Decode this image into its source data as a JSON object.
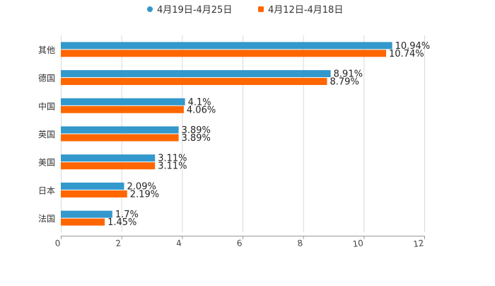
{
  "chart_data": {
    "type": "bar",
    "orientation": "horizontal",
    "title": "",
    "xlabel": "",
    "ylabel": "",
    "categories": [
      "其他",
      "德国",
      "中国",
      "英国",
      "美国",
      "日本",
      "法国"
    ],
    "series": [
      {
        "name": "4月19日-4月25日",
        "color": "#3398cc",
        "values": [
          10.94,
          8.91,
          4.1,
          3.89,
          3.11,
          2.09,
          1.7
        ],
        "labels": [
          "10.94%",
          "8.91%",
          "4.1%",
          "3.89%",
          "3.11%",
          "2.09%",
          "1.7%"
        ]
      },
      {
        "name": "4月12日-4月18日",
        "color": "#ff6600",
        "values": [
          10.74,
          8.79,
          4.06,
          3.89,
          3.11,
          2.19,
          1.45
        ],
        "labels": [
          "10.74%",
          "8.79%",
          "4.06%",
          "3.89%",
          "3.11%",
          "2.19%",
          "1.45%"
        ]
      }
    ],
    "xlim": [
      0,
      12
    ],
    "xticks": [
      "0",
      "2",
      "4",
      "6",
      "8",
      "10",
      "12"
    ],
    "grid": true,
    "legend_position": "top-center"
  }
}
